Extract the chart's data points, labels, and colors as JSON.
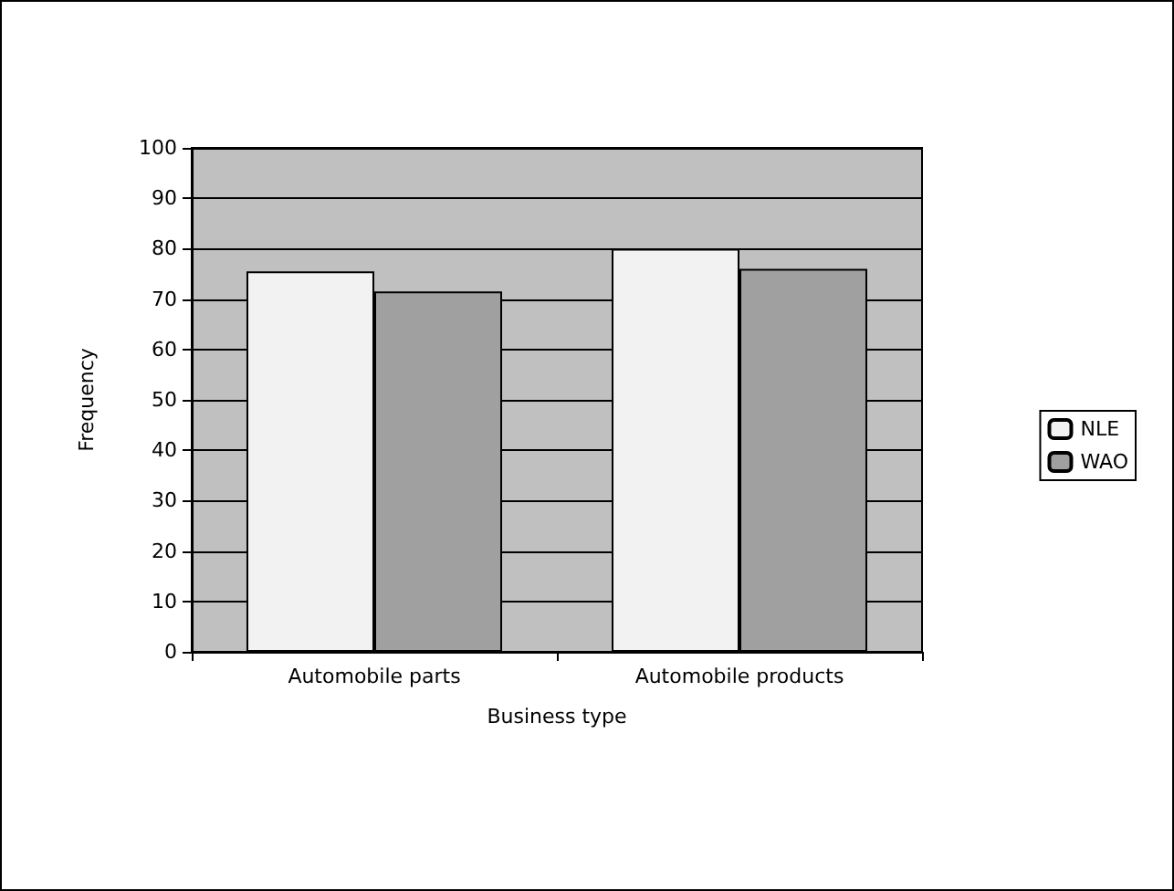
{
  "chart_data": {
    "type": "bar",
    "xlabel": "Business type",
    "ylabel": "Frequency",
    "categories": [
      "Automobile parts",
      "Automobile products"
    ],
    "series": [
      {
        "name": "NLE",
        "color": "#f2f2f2",
        "values": [
          75.5,
          80
        ]
      },
      {
        "name": "WAO",
        "color": "#a0a0a0",
        "values": [
          71.5,
          76
        ]
      }
    ],
    "ylim": [
      0,
      100
    ],
    "yticks": [
      0,
      10,
      20,
      30,
      40,
      50,
      60,
      70,
      80,
      90,
      100
    ],
    "grid": "y",
    "legend": "right"
  }
}
